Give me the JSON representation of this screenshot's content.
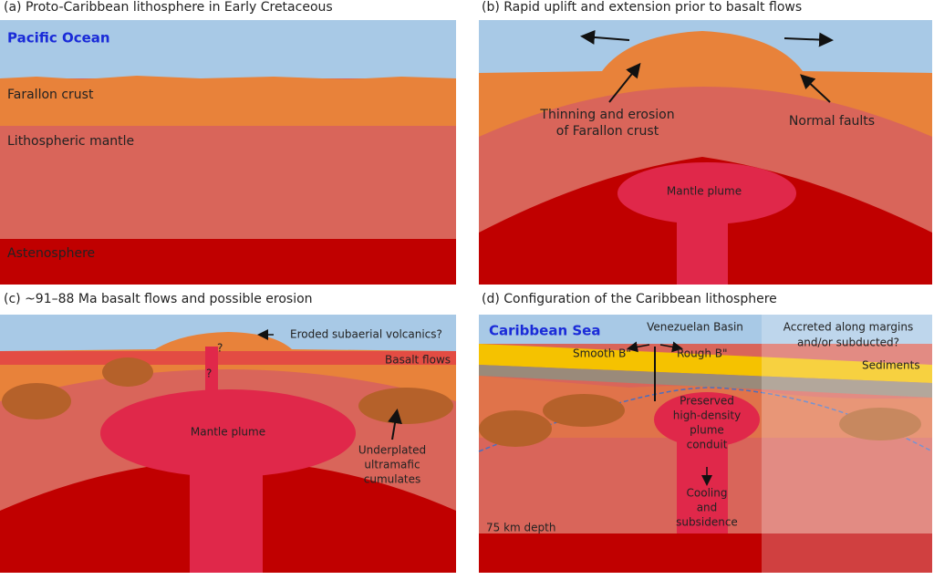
{
  "panels": [
    {
      "title": "(a) Proto-Caribbean lithosphere in Early Cretaceous",
      "labels": [
        [
          "Pacific Ocean"
        ],
        [
          "Farallon crust"
        ],
        [
          "Lithospheric mantle"
        ],
        [
          "Astenosphere"
        ]
      ]
    },
    {
      "title": "(b) Rapid uplift and extension prior to basalt flows",
      "labels": [
        [
          "Thinning and erosion",
          "of Farallon crust"
        ],
        [
          "Normal faults"
        ],
        [
          "Mantle plume"
        ]
      ]
    },
    {
      "title": "(c) ~91–88 Ma basalt flows and possible erosion",
      "labels": [
        [
          "Eroded subaerial volcanics?"
        ],
        [
          "Basalt flows"
        ],
        [
          "Mantle plume"
        ],
        [
          "Underplated",
          "ultramafic",
          "cumulates"
        ],
        [
          "?"
        ],
        [
          "?"
        ]
      ]
    },
    {
      "title": "(d) Configuration of the Caribbean lithosphere",
      "labels": [
        [
          "Caribbean Sea"
        ],
        [
          "Venezuelan Basin"
        ],
        [
          "Smooth B\""
        ],
        [
          "Rough B\""
        ],
        [
          "Accreted along margins",
          "and/or subducted?"
        ],
        [
          "Sediments"
        ],
        [
          "Preserved",
          "high-density",
          "plume",
          "conduit"
        ],
        [
          "Cooling",
          "and",
          "subsidence"
        ],
        [
          "75 km depth"
        ]
      ]
    }
  ]
}
